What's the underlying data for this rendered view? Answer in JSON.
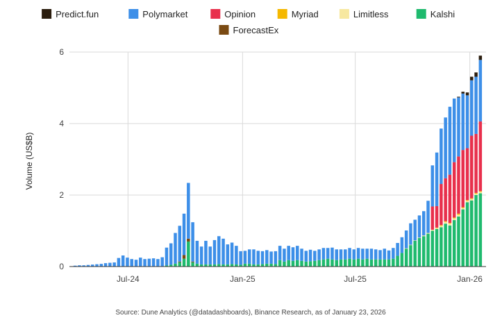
{
  "chart_data": {
    "type": "bar",
    "stacked": true,
    "ylabel": "Volume (US$B)",
    "ylim": [
      0,
      6
    ],
    "yticks": [
      "0",
      "2",
      "4",
      "6"
    ],
    "xticks": [
      "Jul-24",
      "Jan-25",
      "Jul-25",
      "Jan-26"
    ],
    "grid": true,
    "legend_position": "top",
    "source": "Source: Dune Analytics (@datadashboards), Binance Research, as of January 23, 2026",
    "x": [
      "2024-04-07",
      "2024-04-14",
      "2024-04-21",
      "2024-04-28",
      "2024-05-05",
      "2024-05-12",
      "2024-05-19",
      "2024-05-26",
      "2024-06-02",
      "2024-06-09",
      "2024-06-16",
      "2024-06-23",
      "2024-06-30",
      "2024-07-07",
      "2024-07-14",
      "2024-07-21",
      "2024-07-28",
      "2024-08-04",
      "2024-08-11",
      "2024-08-18",
      "2024-08-25",
      "2024-09-01",
      "2024-09-08",
      "2024-09-15",
      "2024-09-22",
      "2024-09-29",
      "2024-10-06",
      "2024-10-13",
      "2024-10-20",
      "2024-10-27",
      "2024-11-03",
      "2024-11-10",
      "2024-11-17",
      "2024-11-24",
      "2024-12-01",
      "2024-12-08",
      "2024-12-15",
      "2024-12-22",
      "2024-12-29",
      "2025-01-05",
      "2025-01-12",
      "2025-01-19",
      "2025-01-26",
      "2025-02-02",
      "2025-02-09",
      "2025-02-16",
      "2025-02-23",
      "2025-03-02",
      "2025-03-09",
      "2025-03-16",
      "2025-03-23",
      "2025-03-30",
      "2025-04-06",
      "2025-04-13",
      "2025-04-20",
      "2025-04-27",
      "2025-05-04",
      "2025-05-11",
      "2025-05-18",
      "2025-05-25",
      "2025-06-01",
      "2025-06-08",
      "2025-06-15",
      "2025-06-22",
      "2025-06-29",
      "2025-07-06",
      "2025-07-13",
      "2025-07-20",
      "2025-07-27",
      "2025-08-03",
      "2025-08-10",
      "2025-08-17",
      "2025-08-24",
      "2025-08-31",
      "2025-09-07",
      "2025-09-14",
      "2025-09-21",
      "2025-09-28",
      "2025-10-05",
      "2025-10-12",
      "2025-10-19",
      "2025-10-26",
      "2025-11-02",
      "2025-11-09",
      "2025-11-16",
      "2025-11-23",
      "2025-11-30",
      "2025-12-07",
      "2025-12-14",
      "2025-12-21",
      "2025-12-28",
      "2026-01-04",
      "2026-01-11",
      "2026-01-18"
    ],
    "series": [
      {
        "name": "Predict.fun",
        "color": "#2b1d0e",
        "values": [
          0,
          0,
          0,
          0,
          0,
          0,
          0,
          0,
          0,
          0,
          0,
          0,
          0,
          0,
          0,
          0,
          0,
          0,
          0,
          0,
          0,
          0,
          0,
          0,
          0,
          0,
          0,
          0,
          0,
          0,
          0,
          0,
          0,
          0,
          0,
          0,
          0,
          0,
          0,
          0,
          0,
          0,
          0,
          0,
          0,
          0,
          0,
          0,
          0,
          0,
          0,
          0,
          0,
          0,
          0,
          0,
          0,
          0,
          0,
          0,
          0,
          0,
          0,
          0,
          0,
          0,
          0,
          0,
          0,
          0,
          0,
          0,
          0,
          0,
          0,
          0,
          0,
          0,
          0,
          0,
          0,
          0,
          0,
          0,
          0,
          0,
          0,
          0,
          0.02,
          0.05,
          0.08,
          0.1,
          0.12,
          0.12
        ]
      },
      {
        "name": "Polymarket",
        "color": "#3d8fe8",
        "values": [
          0.02,
          0.03,
          0.03,
          0.04,
          0.05,
          0.06,
          0.07,
          0.09,
          0.1,
          0.11,
          0.23,
          0.3,
          0.24,
          0.2,
          0.18,
          0.24,
          0.2,
          0.21,
          0.22,
          0.2,
          0.25,
          0.5,
          0.6,
          0.86,
          1.0,
          1.16,
          1.56,
          1.1,
          0.64,
          0.5,
          0.66,
          0.5,
          0.68,
          0.78,
          0.72,
          0.56,
          0.6,
          0.52,
          0.38,
          0.36,
          0.4,
          0.42,
          0.38,
          0.36,
          0.38,
          0.34,
          0.36,
          0.4,
          0.36,
          0.4,
          0.38,
          0.4,
          0.34,
          0.3,
          0.32,
          0.28,
          0.3,
          0.32,
          0.3,
          0.33,
          0.3,
          0.28,
          0.28,
          0.3,
          0.28,
          0.3,
          0.3,
          0.28,
          0.3,
          0.28,
          0.26,
          0.3,
          0.25,
          0.3,
          0.36,
          0.44,
          0.5,
          0.6,
          0.58,
          0.62,
          0.68,
          0.9,
          1.15,
          1.5,
          1.55,
          1.7,
          1.9,
          1.78,
          1.65,
          1.58,
          1.48,
          1.55,
          1.6,
          1.72
        ]
      },
      {
        "name": "Opinion",
        "color": "#e8304c",
        "values": [
          0,
          0,
          0,
          0,
          0,
          0,
          0,
          0,
          0,
          0,
          0,
          0,
          0,
          0,
          0,
          0,
          0,
          0,
          0,
          0,
          0,
          0,
          0,
          0,
          0,
          0,
          0,
          0,
          0,
          0,
          0,
          0,
          0,
          0,
          0,
          0,
          0,
          0,
          0,
          0,
          0,
          0,
          0,
          0,
          0,
          0,
          0,
          0,
          0,
          0,
          0,
          0,
          0,
          0,
          0,
          0,
          0,
          0,
          0,
          0,
          0,
          0,
          0,
          0,
          0,
          0,
          0,
          0,
          0,
          0,
          0,
          0,
          0,
          0,
          0,
          0,
          0,
          0,
          0,
          0,
          0,
          0,
          0.65,
          0.6,
          1.15,
          1.2,
          1.35,
          1.55,
          1.6,
          1.6,
          1.45,
          1.75,
          1.65,
          1.95
        ]
      },
      {
        "name": "Myriad",
        "color": "#f5b800",
        "values": [
          0,
          0,
          0,
          0,
          0,
          0,
          0,
          0,
          0,
          0,
          0,
          0,
          0,
          0,
          0,
          0,
          0,
          0,
          0,
          0,
          0,
          0,
          0,
          0,
          0,
          0,
          0,
          0,
          0,
          0,
          0,
          0,
          0,
          0,
          0,
          0,
          0,
          0,
          0,
          0,
          0,
          0,
          0,
          0,
          0,
          0,
          0,
          0,
          0,
          0,
          0,
          0,
          0,
          0,
          0,
          0,
          0,
          0,
          0,
          0,
          0,
          0,
          0,
          0,
          0,
          0,
          0,
          0,
          0,
          0,
          0,
          0,
          0,
          0,
          0,
          0,
          0,
          0,
          0,
          0,
          0,
          0,
          0,
          0.01,
          0.02,
          0.02,
          0.02,
          0.02,
          0.03,
          0.02,
          0.02,
          0.02,
          0.02,
          0.02
        ]
      },
      {
        "name": "Limitless",
        "color": "#f7e8a0",
        "values": [
          0,
          0,
          0,
          0,
          0,
          0,
          0,
          0,
          0,
          0,
          0,
          0,
          0,
          0,
          0,
          0,
          0,
          0,
          0,
          0,
          0,
          0,
          0,
          0,
          0,
          0,
          0,
          0,
          0,
          0,
          0,
          0,
          0,
          0,
          0,
          0,
          0,
          0,
          0,
          0,
          0,
          0,
          0,
          0,
          0,
          0,
          0,
          0,
          0,
          0,
          0,
          0,
          0,
          0,
          0,
          0,
          0,
          0,
          0,
          0,
          0,
          0,
          0,
          0,
          0,
          0,
          0,
          0,
          0,
          0,
          0,
          0,
          0,
          0,
          0,
          0,
          0.01,
          0.01,
          0.01,
          0.01,
          0.02,
          0.02,
          0.03,
          0.03,
          0.04,
          0.05,
          0.05,
          0.05,
          0.05,
          0.04,
          0.04,
          0.04,
          0.04,
          0.04
        ]
      },
      {
        "name": "Kalshi",
        "color": "#1fba6e",
        "values": [
          0.005,
          0.005,
          0.005,
          0.005,
          0.005,
          0.005,
          0.005,
          0.005,
          0.005,
          0.005,
          0.01,
          0.01,
          0.01,
          0.01,
          0.01,
          0.01,
          0.01,
          0.01,
          0.01,
          0.01,
          0.01,
          0.03,
          0.05,
          0.08,
          0.12,
          0.22,
          0.7,
          0.12,
          0.08,
          0.06,
          0.06,
          0.06,
          0.06,
          0.07,
          0.06,
          0.06,
          0.07,
          0.06,
          0.05,
          0.08,
          0.08,
          0.06,
          0.06,
          0.07,
          0.08,
          0.08,
          0.07,
          0.18,
          0.14,
          0.18,
          0.16,
          0.18,
          0.16,
          0.14,
          0.15,
          0.16,
          0.18,
          0.2,
          0.22,
          0.2,
          0.18,
          0.2,
          0.2,
          0.22,
          0.2,
          0.22,
          0.2,
          0.22,
          0.2,
          0.2,
          0.2,
          0.2,
          0.2,
          0.22,
          0.3,
          0.38,
          0.5,
          0.6,
          0.72,
          0.8,
          0.85,
          0.92,
          1.0,
          1.05,
          1.1,
          1.2,
          1.15,
          1.3,
          1.4,
          1.6,
          1.8,
          1.85,
          2.0,
          2.05
        ]
      },
      {
        "name": "ForecastEx",
        "color": "#7a4a12",
        "values": [
          0,
          0,
          0,
          0,
          0,
          0,
          0,
          0,
          0,
          0,
          0,
          0,
          0,
          0,
          0,
          0,
          0,
          0,
          0,
          0,
          0,
          0,
          0,
          0,
          0.02,
          0.1,
          0.08,
          0.02,
          0,
          0,
          0,
          0,
          0,
          0,
          0,
          0,
          0,
          0,
          0,
          0,
          0,
          0,
          0,
          0,
          0,
          0,
          0,
          0,
          0,
          0,
          0,
          0,
          0,
          0,
          0,
          0,
          0,
          0,
          0,
          0,
          0,
          0,
          0,
          0,
          0,
          0,
          0,
          0,
          0,
          0,
          0,
          0,
          0,
          0,
          0,
          0,
          0,
          0,
          0,
          0,
          0,
          0,
          0,
          0,
          0,
          0,
          0,
          0,
          0,
          0,
          0,
          0,
          0,
          0
        ]
      }
    ],
    "stack_order": [
      "Kalshi",
      "ForecastEx",
      "Limitless",
      "Myriad",
      "Opinion",
      "Polymarket",
      "Predict.fun"
    ]
  }
}
